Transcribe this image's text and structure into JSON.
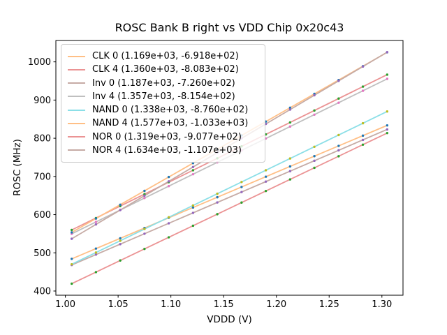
{
  "chart_data": {
    "type": "scatter",
    "title": "ROSC Bank B right vs VDD Chip 0x20c43",
    "xlabel": "VDDD (V)",
    "ylabel": "ROSC (MHz)",
    "xlim": [
      0.991,
      1.32
    ],
    "ylim": [
      389,
      1056
    ],
    "grid": false,
    "legend_position": "upper left",
    "colors": {
      "background": "#ffffff",
      "spine": "#000000",
      "text": "#000000",
      "legend_border": "#cccccc"
    },
    "x_ticks": [
      {
        "value": 1.0,
        "label": "1.00"
      },
      {
        "value": 1.05,
        "label": "1.05"
      },
      {
        "value": 1.1,
        "label": "1.10"
      },
      {
        "value": 1.15,
        "label": "1.15"
      },
      {
        "value": 1.2,
        "label": "1.20"
      },
      {
        "value": 1.25,
        "label": "1.25"
      },
      {
        "value": 1.3,
        "label": "1.30"
      }
    ],
    "y_ticks": [
      {
        "value": 400,
        "label": "400"
      },
      {
        "value": 500,
        "label": "500"
      },
      {
        "value": 600,
        "label": "600"
      },
      {
        "value": 700,
        "label": "700"
      },
      {
        "value": 800,
        "label": "800"
      },
      {
        "value": 900,
        "label": "900"
      },
      {
        "value": 1000,
        "label": "1000"
      }
    ],
    "x": [
      1.006,
      1.029,
      1.052,
      1.075,
      1.098,
      1.121,
      1.144,
      1.167,
      1.19,
      1.213,
      1.236,
      1.259,
      1.282,
      1.305
    ],
    "series": [
      {
        "name": "CLK 0",
        "legend_label": "CLK 0 (1.169e+03, -6.918e+02)",
        "slope": 1169,
        "intercept": -691.8,
        "line_color": "#ffbf86",
        "marker_color": "#1f77b4",
        "y": [
          484.2,
          511.1,
          538.0,
          564.9,
          591.8,
          618.6,
          645.5,
          672.4,
          699.3,
          726.2,
          753.1,
          780.0,
          806.8,
          833.7
        ]
      },
      {
        "name": "CLK 4",
        "legend_label": "CLK 4 (1.360e+03, -8.083e+02)",
        "slope": 1360,
        "intercept": -808.3,
        "line_color": "#eb9394",
        "marker_color": "#2ca02c",
        "y": [
          559.9,
          591.1,
          622.4,
          653.7,
          685.0,
          716.2,
          747.5,
          778.8,
          810.1,
          841.4,
          872.6,
          903.9,
          935.2,
          966.5
        ]
      },
      {
        "name": "Inv 0",
        "legend_label": "Inv 0 (1.187e+03, -7.260e+02)",
        "slope": 1187,
        "intercept": -726.0,
        "line_color": "#c6aba5",
        "marker_color": "#9467bd",
        "y": [
          468.1,
          495.4,
          522.7,
          550.0,
          577.3,
          604.6,
          631.9,
          659.2,
          686.5,
          713.8,
          741.1,
          768.4,
          795.7,
          823.0
        ]
      },
      {
        "name": "Inv 4",
        "legend_label": "Inv 4 (1.357e+03, -8.154e+02)",
        "slope": 1357,
        "intercept": -815.4,
        "line_color": "#bfbfbf",
        "marker_color": "#e377c2",
        "y": [
          549.7,
          580.9,
          612.2,
          643.4,
          674.6,
          705.8,
          737.0,
          768.2,
          799.4,
          830.6,
          861.8,
          893.0,
          924.3,
          955.5
        ]
      },
      {
        "name": "NAND 0",
        "legend_label": "NAND 0 (1.338e+03, -8.760e+02)",
        "slope": 1338,
        "intercept": -876.0,
        "line_color": "#8bdfe7",
        "marker_color": "#bcbd22",
        "y": [
          470.0,
          500.8,
          531.6,
          562.4,
          593.1,
          623.9,
          654.7,
          685.4,
          716.2,
          747.0,
          777.7,
          808.5,
          839.3,
          870.1
        ]
      },
      {
        "name": "NAND 4",
        "legend_label": "NAND 4 (1.577e+03, -1.033e+03)",
        "slope": 1577,
        "intercept": -1033,
        "line_color": "#ffbf86",
        "marker_color": "#1f77b4",
        "y": [
          553.5,
          589.7,
          626.0,
          662.3,
          698.5,
          734.8,
          771.1,
          807.4,
          843.6,
          879.9,
          916.2,
          952.4,
          988.7,
          1025.0
        ]
      },
      {
        "name": "NOR 0",
        "legend_label": "NOR 0 (1.319e+03, -9.077e+02)",
        "slope": 1319,
        "intercept": -907.7,
        "line_color": "#eb9394",
        "marker_color": "#2ca02c",
        "y": [
          419.2,
          449.5,
          479.9,
          510.2,
          540.6,
          570.9,
          601.2,
          631.6,
          661.9,
          692.2,
          722.6,
          752.9,
          783.2,
          813.6
        ]
      },
      {
        "name": "NOR 4",
        "legend_label": "NOR 4 (1.634e+03, -1.107e+03)",
        "slope": 1634,
        "intercept": -1107,
        "line_color": "#c6aba5",
        "marker_color": "#9467bd",
        "y": [
          536.8,
          574.4,
          612.0,
          649.6,
          687.2,
          724.7,
          762.3,
          799.9,
          837.5,
          875.1,
          912.6,
          950.2,
          987.8,
          1025.4
        ]
      }
    ]
  }
}
